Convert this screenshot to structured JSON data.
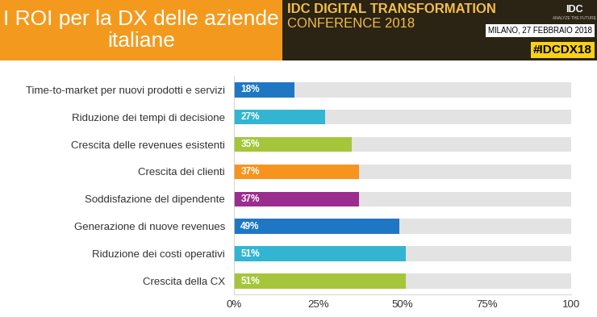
{
  "chart_data": {
    "type": "bar",
    "orientation": "horizontal",
    "title": "I ROI per la DX delle aziende italiane",
    "annotations": [
      "IDC DIGITAL TRANSFORMATION",
      "CONFERENCE 2018",
      "MILANO, 27 FEBBRAIO 2018",
      "#IDCDX18",
      "IDC",
      "ANALYZE THE FUTURE"
    ],
    "categories": [
      "Time-to-market per nuovi prodotti e servizi",
      "Riduzione dei tempi di decisione",
      "Crescita delle revenues esistenti",
      "Crescita dei clienti",
      "Soddisfazione del dipendente",
      "Generazione di nuove revenues",
      "Riduzione dei costi operativi",
      "Crescita della CX"
    ],
    "values": [
      18,
      27,
      35,
      37,
      37,
      49,
      51,
      51
    ],
    "value_labels": [
      "18%",
      "27%",
      "35%",
      "37%",
      "37%",
      "49%",
      "51%",
      "51%"
    ],
    "colors": [
      "#1f77c4",
      "#33b5d1",
      "#a5c63b",
      "#f7941d",
      "#9b2d8e",
      "#1f77c4",
      "#33b5d1",
      "#a5c63b"
    ],
    "data_labels": true,
    "xlim": [
      0,
      100
    ],
    "xticks": [
      {
        "value": 0,
        "label": "0%"
      },
      {
        "value": 25,
        "label": "25%"
      },
      {
        "value": 50,
        "label": "50%"
      },
      {
        "value": 75,
        "label": "75%"
      },
      {
        "value": 100,
        "label": "100"
      }
    ],
    "grid": false
  }
}
